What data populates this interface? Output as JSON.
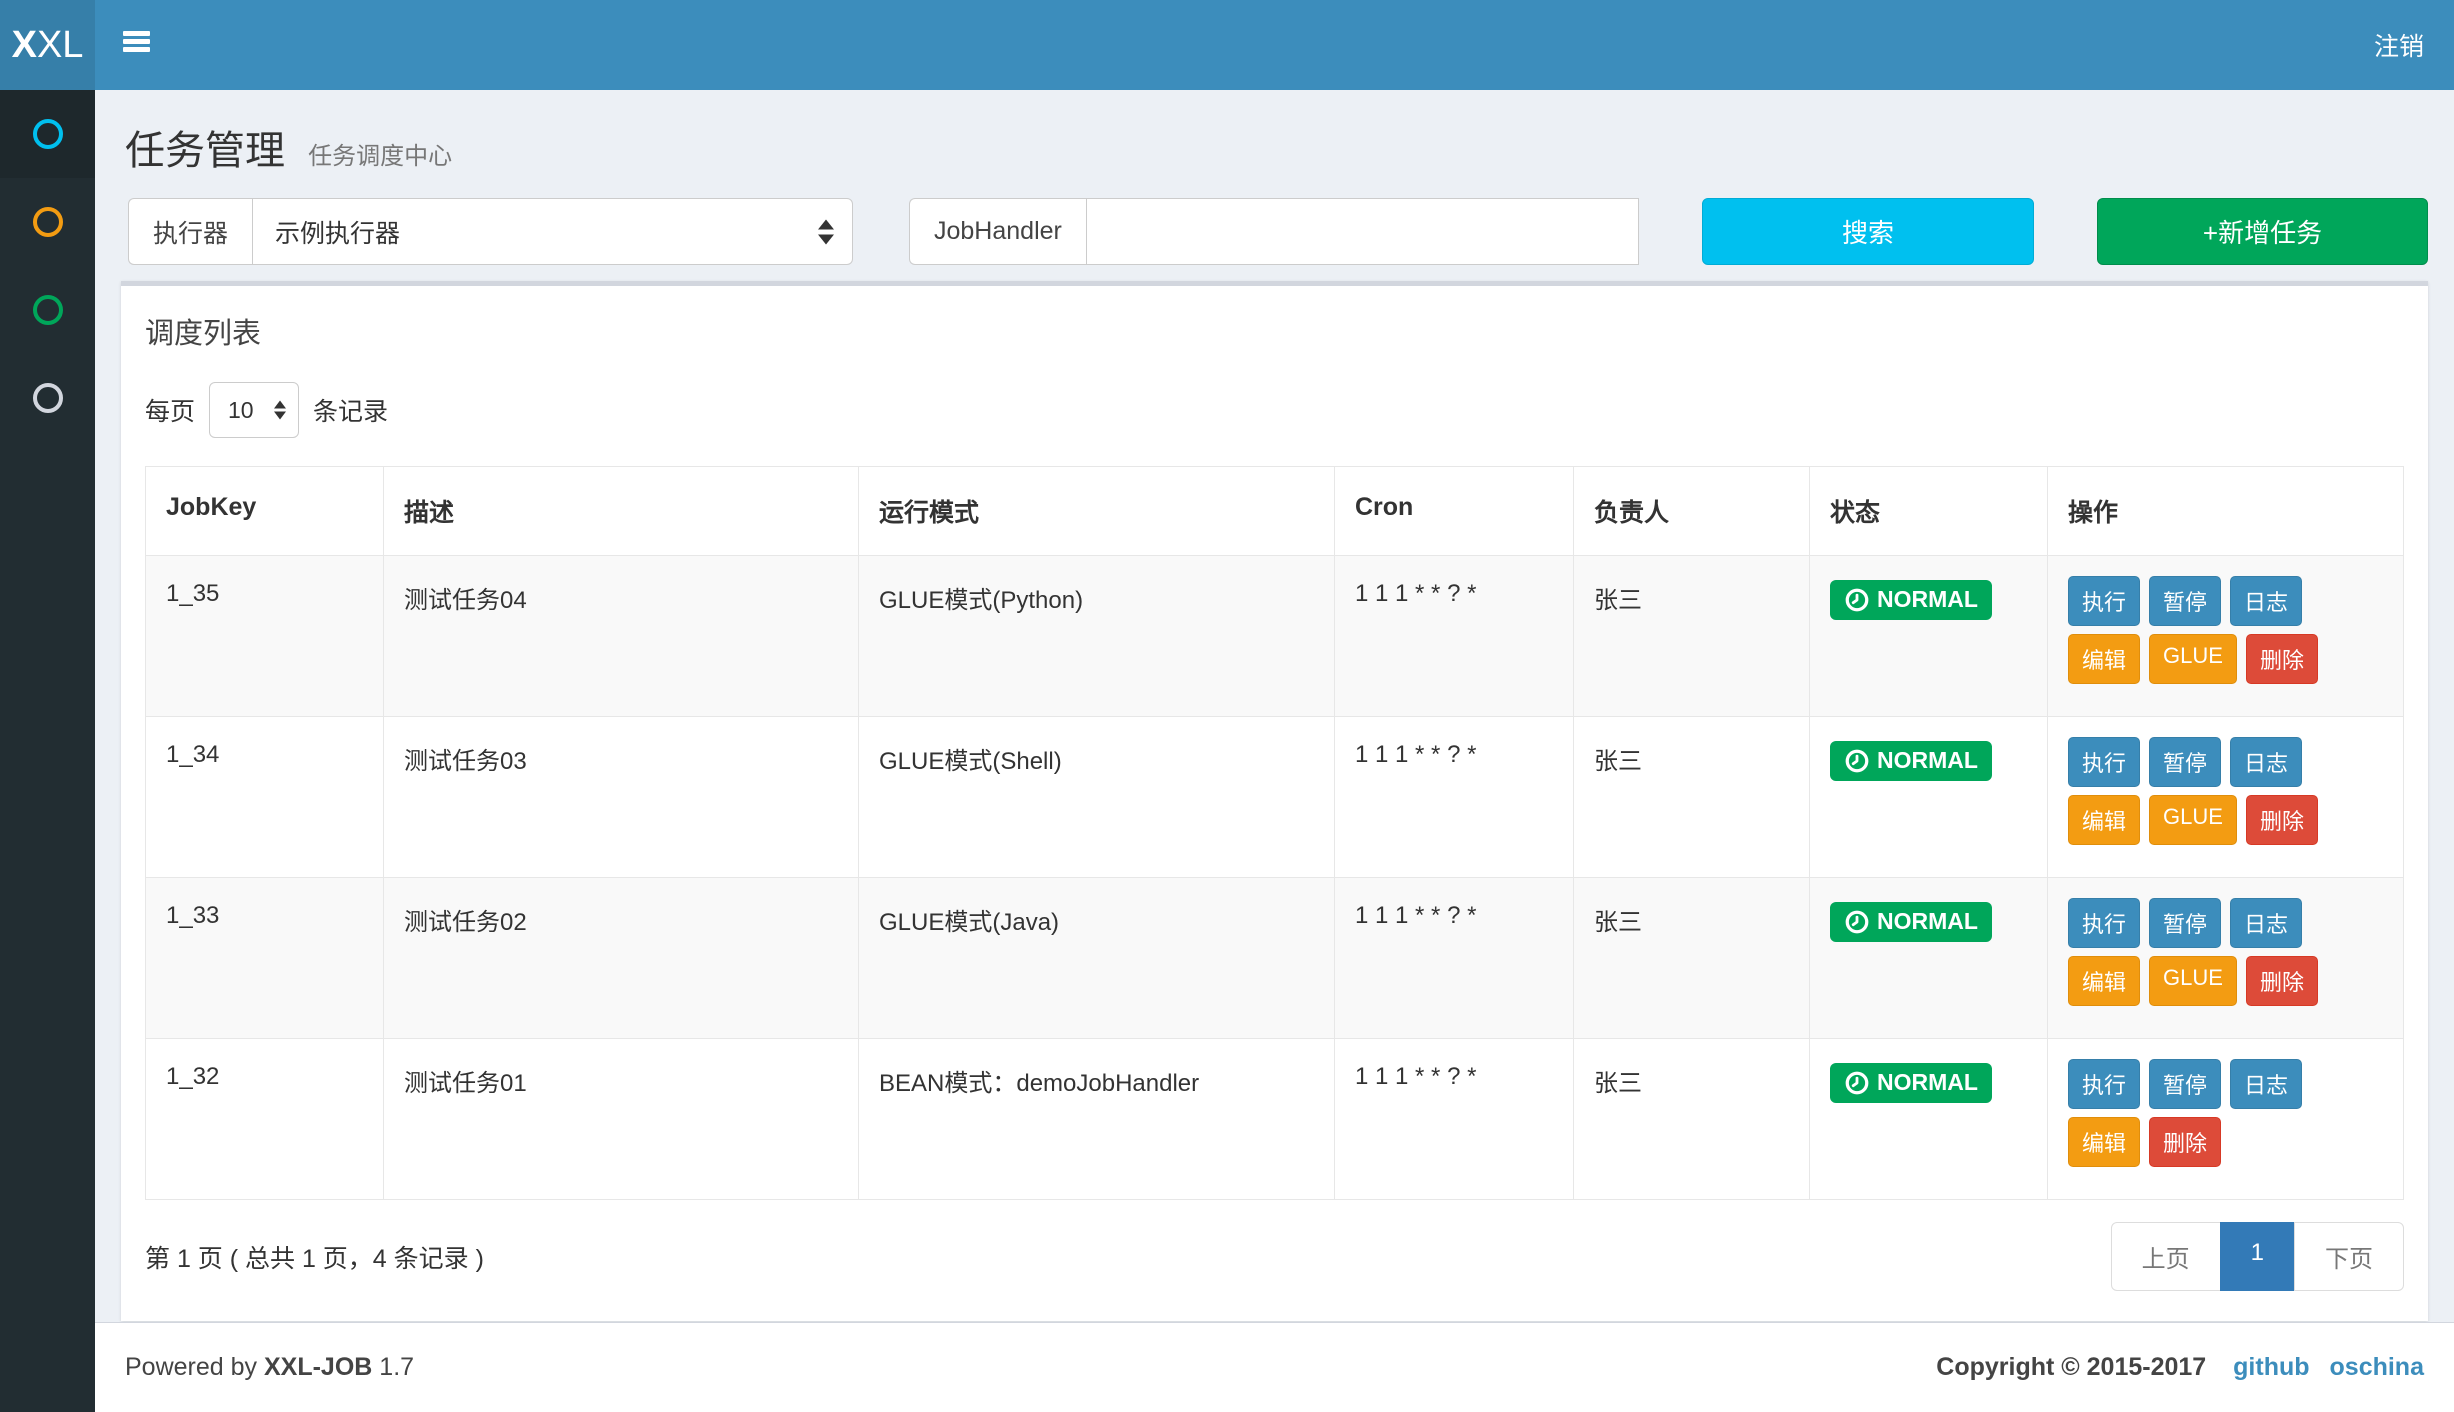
{
  "colors": {
    "navbar": "#3c8dbc",
    "logo_bg": "#367fa9",
    "sidebar_bg": "#222d32",
    "sidebar_active_bg": "#1e282c",
    "body_bg": "#ecf0f5",
    "info": "#00c0ef",
    "success": "#00a65a",
    "primary": "#3c8dbc",
    "warning": "#f39c12",
    "danger": "#dd4b39",
    "pagination_active": "#337ab7"
  },
  "header": {
    "logo_bold": "X",
    "logo_light": "XL",
    "logout": "注销"
  },
  "sidebar": {
    "items": [
      {
        "name": "nav-item-1",
        "icon": "circle-o",
        "color": "#00c0ef",
        "active": true
      },
      {
        "name": "nav-item-2",
        "icon": "circle-o",
        "color": "#f39c12",
        "active": false
      },
      {
        "name": "nav-item-3",
        "icon": "circle-o",
        "color": "#00a65a",
        "active": false
      },
      {
        "name": "nav-item-4",
        "icon": "circle-o",
        "color": "#d2d6de",
        "active": false
      }
    ]
  },
  "page_header": {
    "title": "任务管理",
    "subtitle": "任务调度中心"
  },
  "filters": {
    "executor": {
      "label": "执行器",
      "value": "示例执行器"
    },
    "jobhandler": {
      "label": "JobHandler",
      "value": ""
    },
    "search_button": "搜索",
    "add_button": "+新增任务"
  },
  "panel": {
    "title": "调度列表",
    "page_size": {
      "prefix": "每页",
      "value": "10",
      "suffix": "条记录"
    }
  },
  "table": {
    "columns": [
      "JobKey",
      "描述",
      "运行模式",
      "Cron",
      "负责人",
      "状态",
      "操作"
    ],
    "rows": [
      {
        "job_key": "1_35",
        "description": "测试任务04",
        "mode": "GLUE模式(Python)",
        "cron": "1 1 1 * * ? *",
        "owner": "张三",
        "status": "NORMAL",
        "actions": [
          {
            "label": "执行",
            "type": "primary",
            "line": 1
          },
          {
            "label": "暂停",
            "type": "primary",
            "line": 1
          },
          {
            "label": "日志",
            "type": "primary",
            "line": 1
          },
          {
            "label": "编辑",
            "type": "warning",
            "line": 2
          },
          {
            "label": "GLUE",
            "type": "warning",
            "line": 2
          },
          {
            "label": "删除",
            "type": "danger",
            "line": 2
          }
        ]
      },
      {
        "job_key": "1_34",
        "description": "测试任务03",
        "mode": "GLUE模式(Shell)",
        "cron": "1 1 1 * * ? *",
        "owner": "张三",
        "status": "NORMAL",
        "actions": [
          {
            "label": "执行",
            "type": "primary",
            "line": 1
          },
          {
            "label": "暂停",
            "type": "primary",
            "line": 1
          },
          {
            "label": "日志",
            "type": "primary",
            "line": 1
          },
          {
            "label": "编辑",
            "type": "warning",
            "line": 2
          },
          {
            "label": "GLUE",
            "type": "warning",
            "line": 2
          },
          {
            "label": "删除",
            "type": "danger",
            "line": 2
          }
        ]
      },
      {
        "job_key": "1_33",
        "description": "测试任务02",
        "mode": "GLUE模式(Java)",
        "cron": "1 1 1 * * ? *",
        "owner": "张三",
        "status": "NORMAL",
        "actions": [
          {
            "label": "执行",
            "type": "primary",
            "line": 1
          },
          {
            "label": "暂停",
            "type": "primary",
            "line": 1
          },
          {
            "label": "日志",
            "type": "primary",
            "line": 1
          },
          {
            "label": "编辑",
            "type": "warning",
            "line": 2
          },
          {
            "label": "GLUE",
            "type": "warning",
            "line": 2
          },
          {
            "label": "删除",
            "type": "danger",
            "line": 2
          }
        ]
      },
      {
        "job_key": "1_32",
        "description": "测试任务01",
        "mode": "BEAN模式：demoJobHandler",
        "cron": "1 1 1 * * ? *",
        "owner": "张三",
        "status": "NORMAL",
        "actions": [
          {
            "label": "执行",
            "type": "primary",
            "line": 1
          },
          {
            "label": "暂停",
            "type": "primary",
            "line": 1
          },
          {
            "label": "日志",
            "type": "primary",
            "line": 1
          },
          {
            "label": "编辑",
            "type": "warning",
            "line": 2
          },
          {
            "label": "删除",
            "type": "danger",
            "line": 2
          }
        ]
      }
    ]
  },
  "pagination": {
    "info": "第 1 页 ( 总共 1 页，4 条记录 )",
    "prev": "上页",
    "current": "1",
    "next": "下页"
  },
  "footer": {
    "powered_prefix": "Powered by",
    "brand": "XXL-JOB",
    "version": "1.7",
    "copyright": "Copyright © 2015-2017",
    "links": [
      "github",
      "oschina"
    ]
  }
}
